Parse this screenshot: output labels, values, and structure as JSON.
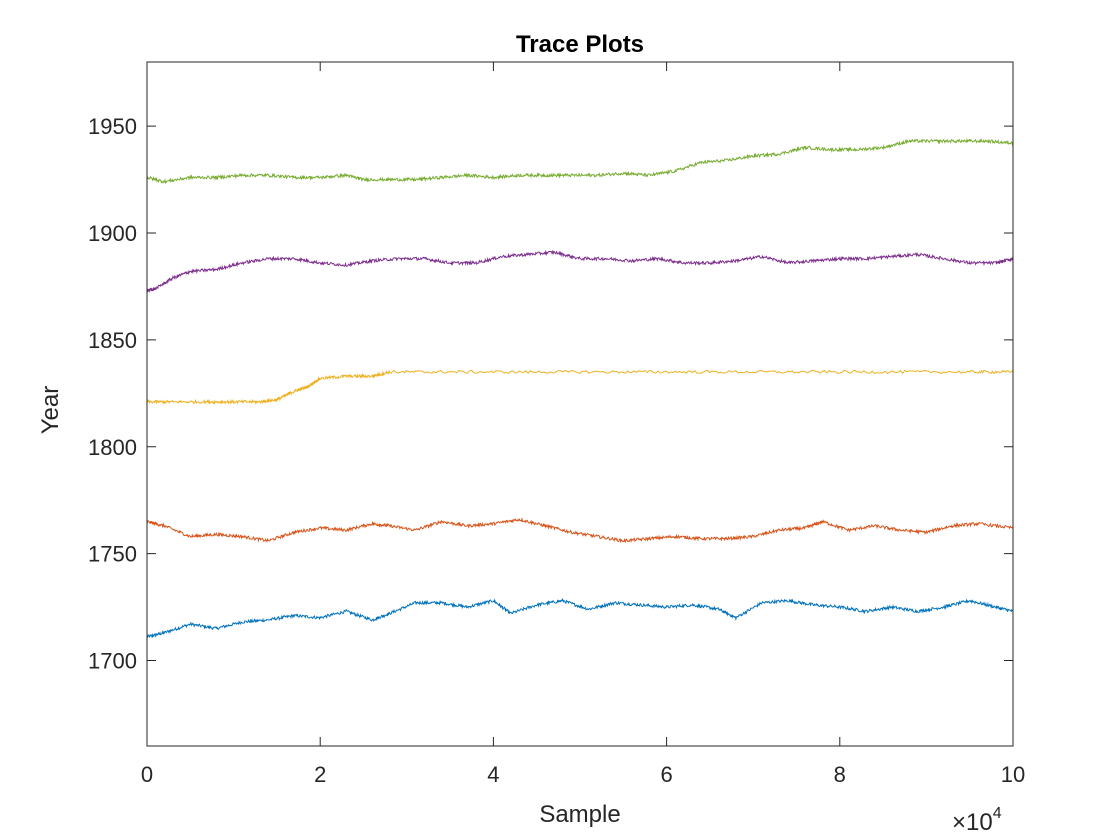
{
  "chart_data": {
    "type": "line",
    "title": "Trace Plots",
    "xlabel": "Sample",
    "ylabel": "Year",
    "x_exponent_label": "×10",
    "x_exponent_power": "4",
    "xlim": [
      0,
      100000
    ],
    "ylim": [
      1660,
      1980
    ],
    "xticks": [
      0,
      20000,
      40000,
      60000,
      80000,
      100000
    ],
    "xtick_labels": [
      "0",
      "2",
      "4",
      "6",
      "8",
      "10"
    ],
    "yticks": [
      1700,
      1750,
      1800,
      1850,
      1900,
      1950
    ],
    "ytick_labels": [
      "1700",
      "1750",
      "1800",
      "1850",
      "1900",
      "1950"
    ],
    "grid": false,
    "series": [
      {
        "color": "#0072BD",
        "x": [
          0,
          2000,
          5000,
          8000,
          11000,
          14000,
          17000,
          20000,
          23000,
          26000,
          28000,
          31000,
          34000,
          37000,
          40000,
          42000,
          45000,
          48000,
          51000,
          54000,
          57000,
          60000,
          63000,
          66000,
          68000,
          71000,
          74000,
          77000,
          80000,
          83000,
          86000,
          89000,
          92000,
          95000,
          98000,
          100000
        ],
        "y": [
          1711,
          1713,
          1717,
          1715,
          1718,
          1719,
          1721,
          1720,
          1723,
          1719,
          1722,
          1727,
          1727,
          1725,
          1728,
          1722,
          1726,
          1728,
          1724,
          1727,
          1726,
          1725,
          1726,
          1724,
          1720,
          1727,
          1728,
          1726,
          1725,
          1723,
          1725,
          1723,
          1725,
          1728,
          1725,
          1723
        ]
      },
      {
        "color": "#D95319",
        "x": [
          0,
          2000,
          5000,
          8000,
          11000,
          14000,
          17000,
          20000,
          23000,
          26000,
          28000,
          31000,
          34000,
          37000,
          40000,
          43000,
          46000,
          49000,
          52000,
          55000,
          58000,
          61000,
          64000,
          67000,
          70000,
          73000,
          76000,
          78000,
          81000,
          84000,
          87000,
          90000,
          93000,
          96000,
          100000
        ],
        "y": [
          1765,
          1763,
          1758,
          1759,
          1758,
          1756,
          1760,
          1762,
          1761,
          1764,
          1763,
          1761,
          1765,
          1763,
          1764,
          1766,
          1763,
          1760,
          1758,
          1756,
          1757,
          1758,
          1757,
          1757,
          1758,
          1761,
          1762,
          1765,
          1761,
          1763,
          1761,
          1760,
          1763,
          1764,
          1762
        ]
      },
      {
        "color": "#EDB120",
        "x": [
          0,
          3000,
          7000,
          10000,
          13000,
          15000,
          17000,
          18500,
          20000,
          23000,
          26000,
          28000,
          35000,
          45000,
          55000,
          65000,
          75000,
          85000,
          95000,
          100000
        ],
        "y": [
          1821,
          1821,
          1821,
          1821,
          1821,
          1822,
          1826,
          1828,
          1832,
          1833,
          1833,
          1835,
          1835,
          1835,
          1835,
          1835,
          1835,
          1835,
          1835,
          1835
        ]
      },
      {
        "color": "#7E2F8E",
        "x": [
          0,
          1000,
          3000,
          5000,
          8000,
          11000,
          14000,
          17000,
          20000,
          23000,
          26000,
          29000,
          32000,
          35000,
          38000,
          41000,
          44000,
          47000,
          50000,
          53000,
          56000,
          59000,
          62000,
          65000,
          68000,
          71000,
          74000,
          77000,
          80000,
          83000,
          86000,
          89000,
          92000,
          95000,
          98000,
          100000
        ],
        "y": [
          1873,
          1874,
          1879,
          1882,
          1883,
          1886,
          1888,
          1888,
          1886,
          1885,
          1887,
          1888,
          1888,
          1886,
          1886,
          1889,
          1890,
          1891,
          1888,
          1888,
          1887,
          1888,
          1886,
          1886,
          1887,
          1889,
          1886,
          1887,
          1888,
          1888,
          1889,
          1890,
          1888,
          1886,
          1886,
          1888
        ]
      },
      {
        "color": "#77AC30",
        "x": [
          0,
          2000,
          5000,
          8000,
          11000,
          14000,
          17000,
          20000,
          23000,
          25000,
          28000,
          31000,
          34000,
          37000,
          40000,
          43000,
          46000,
          49000,
          52000,
          55000,
          58000,
          61000,
          64000,
          67000,
          70000,
          73000,
          76000,
          79000,
          82000,
          85000,
          88000,
          91000,
          94000,
          97000,
          100000
        ],
        "y": [
          1926,
          1924,
          1926,
          1926,
          1927,
          1927,
          1926,
          1926,
          1927,
          1925,
          1925,
          1925,
          1926,
          1927,
          1926,
          1927,
          1927,
          1927,
          1927,
          1928,
          1927,
          1929,
          1933,
          1934,
          1936,
          1937,
          1940,
          1939,
          1939,
          1940,
          1943,
          1943,
          1943,
          1943,
          1942
        ]
      }
    ]
  }
}
